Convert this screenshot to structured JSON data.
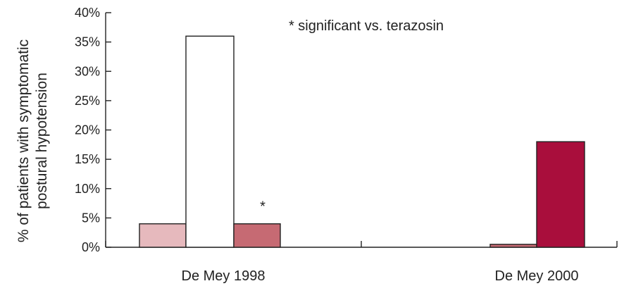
{
  "chart_data": {
    "type": "bar",
    "ylabel": "% of patients with symptomatic postural hypotension",
    "ylim": [
      0,
      40
    ],
    "yticks": [
      0,
      5,
      10,
      15,
      20,
      25,
      30,
      35,
      40
    ],
    "ytick_labels": [
      "0%",
      "5%",
      "10%",
      "15%",
      "20%",
      "25%",
      "30%",
      "35%",
      "40%"
    ],
    "categories": [
      "De Mey 1998",
      "De Mey 2000"
    ],
    "series_colors": [
      "#e6b9bd",
      "#ffffff",
      "#c66a73",
      "#a90e3c"
    ],
    "groups": [
      {
        "category": "De Mey 1998",
        "bars": [
          {
            "value": 4
          },
          {
            "value": 36
          },
          {
            "value": 4,
            "annotation": "*"
          }
        ]
      },
      {
        "category": "De Mey 2000",
        "bars": [
          {
            "value": 0.5
          },
          {
            "value": 18
          }
        ]
      }
    ],
    "annotations": {
      "legend_note": "* significant vs. terazosin"
    },
    "grid": false,
    "legend": "none"
  }
}
